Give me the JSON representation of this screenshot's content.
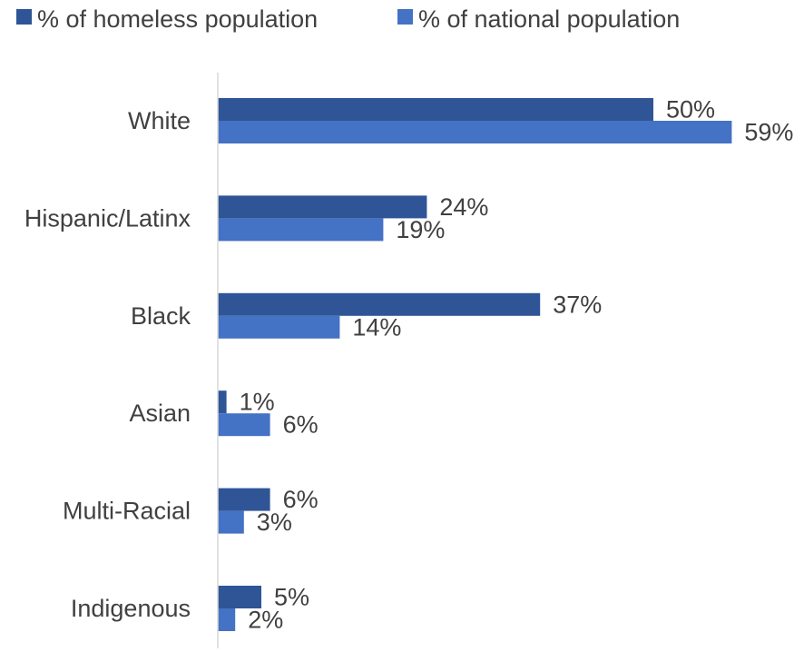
{
  "chart_data": {
    "type": "bar",
    "orientation": "horizontal",
    "categories": [
      "White",
      "Hispanic/Latinx",
      "Black",
      "Asian",
      "Multi-Racial",
      "Indigenous"
    ],
    "series": [
      {
        "name": "% of homeless population",
        "color": "#2F5597",
        "values": [
          50,
          24,
          37,
          1,
          6,
          5
        ]
      },
      {
        "name": "% of national population",
        "color": "#4472C4",
        "values": [
          59,
          19,
          14,
          6,
          3,
          2
        ]
      }
    ],
    "value_suffix": "%",
    "xlim": [
      0,
      60
    ],
    "legend_position": "top-left",
    "grid": false,
    "axis_color": "#D9D9D9"
  }
}
